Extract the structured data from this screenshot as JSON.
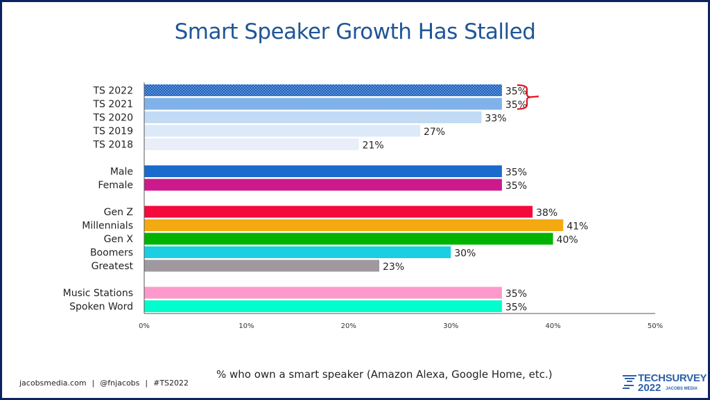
{
  "title": "Smart Speaker Growth Has Stalled",
  "footer": {
    "site": "jacobsmedia.com",
    "handle": "@fnjacobs",
    "hashtag": "#TS2022",
    "separator": "|"
  },
  "logo": {
    "line1": "TECHSURVEY",
    "line2": "2022",
    "line3": "JACOBS MEDIA"
  },
  "chart_data": {
    "type": "bar",
    "orientation": "horizontal",
    "title": "Smart Speaker Growth Has Stalled",
    "xlabel": "% who own a smart speaker (Amazon Alexa, Google Home, etc.)",
    "ylabel": "",
    "xlim": [
      0,
      50
    ],
    "xticks": [
      "0%",
      "10%",
      "20%",
      "30%",
      "40%",
      "50%"
    ],
    "grid": false,
    "groups": [
      {
        "bars": [
          {
            "label": "TS 2022",
            "value": 35,
            "text": "35%",
            "color": "#1f5fb8",
            "pattern": true
          },
          {
            "label": "TS 2021",
            "value": 35,
            "text": "35%",
            "color": "#7fb2ea"
          },
          {
            "label": "TS 2020",
            "value": 33,
            "text": "33%",
            "color": "#c1dbf5"
          },
          {
            "label": "TS 2019",
            "value": 27,
            "text": "27%",
            "color": "#dce9f8"
          },
          {
            "label": "TS 2018",
            "value": 21,
            "text": "21%",
            "color": "#e9eef8"
          }
        ]
      },
      {
        "bars": [
          {
            "label": "Male",
            "value": 35,
            "text": "35%",
            "color": "#1a6ccc"
          },
          {
            "label": "Female",
            "value": 35,
            "text": "35%",
            "color": "#cc1a8c"
          }
        ]
      },
      {
        "bars": [
          {
            "label": "Gen Z",
            "value": 38,
            "text": "38%",
            "color": "#f50a3c"
          },
          {
            "label": "Millennials",
            "value": 41,
            "text": "41%",
            "color": "#f2aa10"
          },
          {
            "label": "Gen X",
            "value": 40,
            "text": "40%",
            "color": "#00b300"
          },
          {
            "label": "Boomers",
            "value": 30,
            "text": "30%",
            "color": "#1acfe2"
          },
          {
            "label": "Greatest",
            "value": 23,
            "text": "23%",
            "color": "#a0989f"
          }
        ]
      },
      {
        "bars": [
          {
            "label": "Music Stations",
            "value": 35,
            "text": "35%",
            "color": "#fd9acb"
          },
          {
            "label": "Spoken Word",
            "value": 35,
            "text": "35%",
            "color": "#00fdcc"
          }
        ]
      }
    ],
    "annotation": {
      "type": "bracket",
      "color": "#e3101c",
      "spans": [
        "TS 2022",
        "TS 2021"
      ]
    }
  }
}
